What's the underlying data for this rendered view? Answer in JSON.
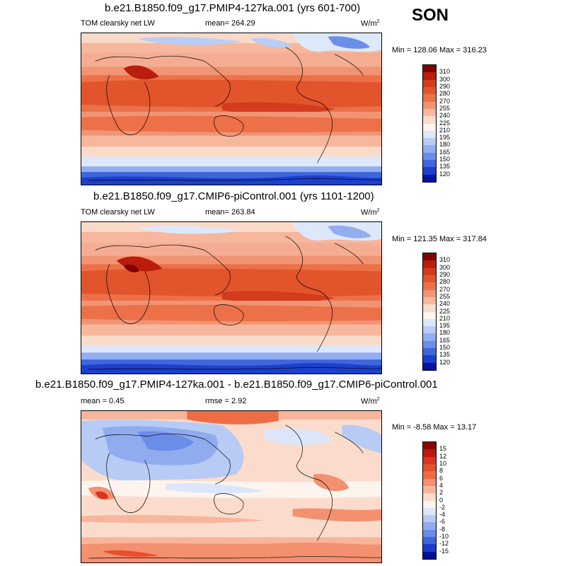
{
  "season": "SON",
  "panels": [
    {
      "title": "b.e21.B1850.f09_g17.PMIP4-127ka.001 (yrs 601-700)",
      "left_label": "TOM clearsky net LW",
      "center_label": "mean= 264.29",
      "units": "W/m",
      "units_sup": "2",
      "minmax": "Min = 128.06 Max = 316.23",
      "colorbar_labels": [
        "310",
        "300",
        "290",
        "280",
        "270",
        "255",
        "240",
        "225",
        "210",
        "195",
        "180",
        "165",
        "150",
        "135",
        "120"
      ],
      "colorbar_colors": [
        "#7f0000",
        "#b81d0d",
        "#d33b1c",
        "#e2552c",
        "#ec7148",
        "#f19473",
        "#f6b79d",
        "#fbdccb",
        "#fdf5ee",
        "#dde8fb",
        "#b9cdf6",
        "#92aef0",
        "#6b8ee8",
        "#3f66dc",
        "#1c3fcd",
        "#04149f"
      ]
    },
    {
      "title": "b.e21.B1850.f09_g17.CMIP6-piControl.001 (yrs 1101-1200)",
      "left_label": "TOM clearsky net LW",
      "center_label": "mean= 263.84",
      "units": "W/m",
      "units_sup": "2",
      "minmax": "Min = 121.35 Max = 317.84",
      "colorbar_labels": [
        "310",
        "300",
        "290",
        "280",
        "270",
        "255",
        "240",
        "225",
        "210",
        "195",
        "180",
        "165",
        "150",
        "135",
        "120"
      ],
      "colorbar_colors": [
        "#7f0000",
        "#b81d0d",
        "#d33b1c",
        "#e2552c",
        "#ec7148",
        "#f19473",
        "#f6b79d",
        "#fbdccb",
        "#fdf5ee",
        "#dde8fb",
        "#b9cdf6",
        "#92aef0",
        "#6b8ee8",
        "#3f66dc",
        "#1c3fcd",
        "#04149f"
      ]
    },
    {
      "title": "b.e21.B1850.f09_g17.PMIP4-127ka.001 - b.e21.B1850.f09_g17.CMIP6-piControl.001",
      "left_label": "mean =   0.45",
      "center_label": "rmse =   2.92",
      "units": "W/m",
      "units_sup": "2",
      "minmax": "Min =  -8.58 Max =  13.17",
      "colorbar_labels": [
        "15",
        "12",
        "10",
        "8",
        "6",
        "4",
        "2",
        "0",
        "-2",
        "-4",
        "-6",
        "-8",
        "-10",
        "-12",
        "-15"
      ],
      "colorbar_colors": [
        "#8b0000",
        "#c0160f",
        "#d8341e",
        "#e64f2e",
        "#ee6d46",
        "#f39070",
        "#f7b59b",
        "#fbdccc",
        "#fef4ee",
        "#dbe6fa",
        "#b7cbf5",
        "#90acef",
        "#6a8de7",
        "#3f65db",
        "#1c3dcb",
        "#000f94"
      ]
    }
  ]
}
